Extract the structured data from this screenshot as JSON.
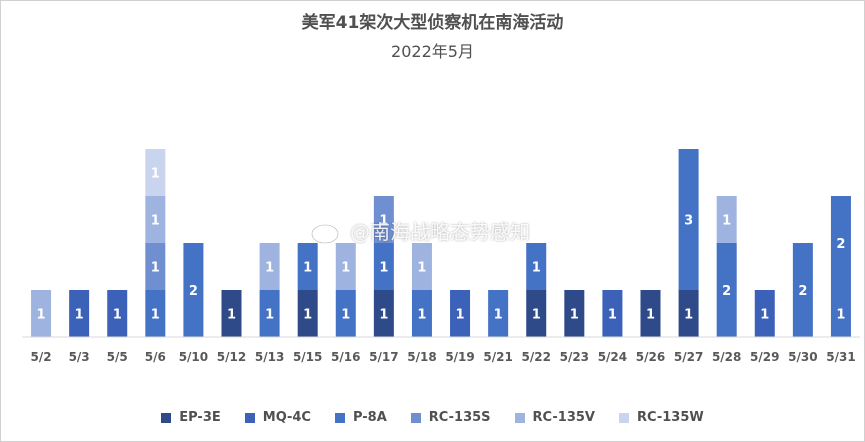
{
  "chart_data": {
    "type": "bar",
    "stacked": true,
    "title": "美军41架次大型侦察机在南海活动",
    "subtitle": "2022年5月",
    "xlabel": "",
    "ylabel": "",
    "ylim": [
      0,
      4.5
    ],
    "grid": false,
    "legend": "bottom",
    "categories": [
      "5/2",
      "5/3",
      "5/5",
      "5/6",
      "5/10",
      "5/12",
      "5/13",
      "5/15",
      "5/16",
      "5/17",
      "5/18",
      "5/19",
      "5/21",
      "5/22",
      "5/23",
      "5/24",
      "5/26",
      "5/27",
      "5/28",
      "5/29",
      "5/30",
      "5/31"
    ],
    "series": [
      {
        "name": "EP-3E",
        "color": "#2e4a88",
        "values": [
          0,
          0,
          0,
          0,
          0,
          1,
          0,
          1,
          0,
          1,
          0,
          0,
          0,
          1,
          1,
          0,
          1,
          1,
          0,
          0,
          0,
          0
        ]
      },
      {
        "name": "MQ-4C",
        "color": "#3b62b8",
        "values": [
          0,
          1,
          1,
          0,
          0,
          0,
          0,
          0,
          0,
          0,
          0,
          1,
          0,
          0,
          0,
          1,
          0,
          0,
          0,
          1,
          0,
          0
        ]
      },
      {
        "name": "P-8A",
        "color": "#4472c4",
        "values": [
          0,
          0,
          0,
          1,
          2,
          0,
          1,
          1,
          1,
          1,
          1,
          0,
          1,
          1,
          0,
          0,
          0,
          3,
          2,
          0,
          2,
          3
        ]
      },
      {
        "name": "RC-135S",
        "color": "#6f8fd0",
        "values": [
          0,
          0,
          0,
          1,
          0,
          0,
          0,
          0,
          0,
          1,
          0,
          0,
          0,
          0,
          0,
          0,
          0,
          0,
          0,
          0,
          0,
          0
        ]
      },
      {
        "name": "RC-135V",
        "color": "#9fb3e0",
        "values": [
          1,
          0,
          0,
          1,
          0,
          0,
          1,
          0,
          1,
          0,
          1,
          0,
          0,
          0,
          0,
          0,
          0,
          0,
          1,
          0,
          0,
          0
        ]
      },
      {
        "name": "RC-135W",
        "color": "#c9d4ee",
        "values": [
          0,
          0,
          0,
          1,
          0,
          0,
          0,
          0,
          0,
          0,
          0,
          0,
          0,
          0,
          0,
          0,
          0,
          0,
          0,
          0,
          0,
          0
        ]
      }
    ],
    "data_labels": [
      [
        {
          "series": "RC-135V",
          "value": 1
        }
      ],
      [
        {
          "series": "MQ-4C",
          "value": 1
        }
      ],
      [
        {
          "series": "MQ-4C",
          "value": 1
        }
      ],
      [
        {
          "series": "P-8A",
          "value": 1
        },
        {
          "series": "RC-135S",
          "value": 1
        },
        {
          "series": "RC-135V",
          "value": 1
        },
        {
          "series": "RC-135W",
          "value": 1
        }
      ],
      [
        {
          "series": "P-8A",
          "value": 2
        }
      ],
      [
        {
          "series": "EP-3E",
          "value": 1
        }
      ],
      [
        {
          "series": "P-8A",
          "value": 1
        },
        {
          "series": "RC-135V",
          "value": 1
        }
      ],
      [
        {
          "series": "EP-3E",
          "value": 1
        },
        {
          "series": "P-8A",
          "value": 1
        }
      ],
      [
        {
          "series": "P-8A",
          "value": 1
        },
        {
          "series": "RC-135V",
          "value": 1
        }
      ],
      [
        {
          "series": "EP-3E",
          "value": 1
        },
        {
          "series": "P-8A",
          "value": 1
        },
        {
          "series": "RC-135S",
          "value": 1
        }
      ],
      [
        {
          "series": "P-8A",
          "value": 1
        },
        {
          "series": "RC-135V",
          "value": 1
        }
      ],
      [
        {
          "series": "MQ-4C",
          "value": 1
        }
      ],
      [
        {
          "series": "P-8A",
          "value": 1
        }
      ],
      [
        {
          "series": "EP-3E",
          "value": 1
        },
        {
          "series": "P-8A",
          "value": 1
        }
      ],
      [
        {
          "series": "EP-3E",
          "value": 1
        }
      ],
      [
        {
          "series": "MQ-4C",
          "value": 1
        }
      ],
      [
        {
          "series": "EP-3E",
          "value": 1
        }
      ],
      [
        {
          "series": "EP-3E",
          "value": 1
        },
        {
          "series": "P-8A",
          "value": 3
        }
      ],
      [
        {
          "series": "P-8A",
          "value": 2
        },
        {
          "series": "RC-135V",
          "value": 1
        }
      ],
      [
        {
          "series": "MQ-4C",
          "value": 1
        }
      ],
      [
        {
          "series": "P-8A",
          "value": 2
        }
      ],
      [
        {
          "series": "P-8A",
          "value": 1
        },
        {
          "series": "P-8A",
          "value": 2
        }
      ]
    ]
  },
  "watermark": {
    "text": "@南海战略态势感知",
    "icon": "weibo-icon"
  }
}
